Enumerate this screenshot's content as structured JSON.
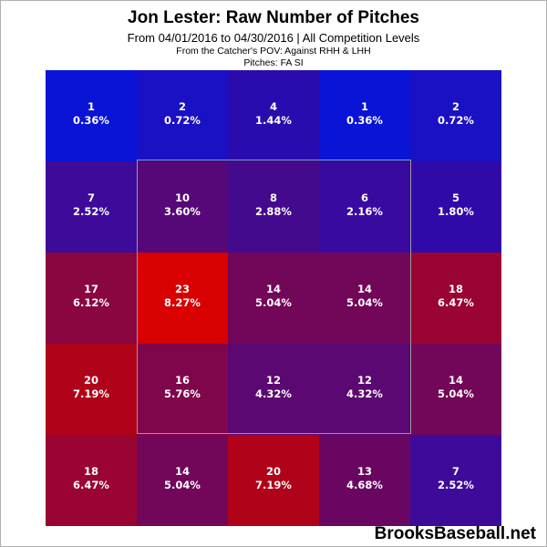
{
  "header": {
    "title": "Jon Lester: Raw Number of Pitches",
    "subtitle": "From 04/01/2016 to 04/30/2016 | All Competition Levels",
    "pov": "From the Catcher's POV:  Against RHH & LHH",
    "pitches": "Pitches:  FA  SI"
  },
  "brand": "BrooksBaseball.net",
  "chart_data": {
    "type": "heatmap",
    "rows": 5,
    "cols": 5,
    "strike_zone": {
      "rows": [
        1,
        3
      ],
      "cols": [
        1,
        3
      ]
    },
    "cells": [
      [
        {
          "count": "1",
          "pct": "0.36%",
          "color": "#0a14d6"
        },
        {
          "count": "2",
          "pct": "0.72%",
          "color": "#1a10c4"
        },
        {
          "count": "4",
          "pct": "1.44%",
          "color": "#2a0cae"
        },
        {
          "count": "1",
          "pct": "0.36%",
          "color": "#0a14d6"
        },
        {
          "count": "2",
          "pct": "0.72%",
          "color": "#1a10c4"
        }
      ],
      [
        {
          "count": "7",
          "pct": "2.52%",
          "color": "#3e0a9a"
        },
        {
          "count": "10",
          "pct": "3.60%",
          "color": "#570878"
        },
        {
          "count": "8",
          "pct": "2.88%",
          "color": "#440a8e"
        },
        {
          "count": "6",
          "pct": "2.16%",
          "color": "#380aa0"
        },
        {
          "count": "5",
          "pct": "1.80%",
          "color": "#300aa8"
        }
      ],
      [
        {
          "count": "17",
          "pct": "6.12%",
          "color": "#8a0640"
        },
        {
          "count": "23",
          "pct": "8.27%",
          "color": "#d80000"
        },
        {
          "count": "14",
          "pct": "5.04%",
          "color": "#720658"
        },
        {
          "count": "14",
          "pct": "5.04%",
          "color": "#720658"
        },
        {
          "count": "18",
          "pct": "6.47%",
          "color": "#9a0432"
        }
      ],
      [
        {
          "count": "20",
          "pct": "7.19%",
          "color": "#b00218"
        },
        {
          "count": "16",
          "pct": "5.76%",
          "color": "#80064c"
        },
        {
          "count": "12",
          "pct": "4.32%",
          "color": "#5c0872"
        },
        {
          "count": "12",
          "pct": "4.32%",
          "color": "#5c0872"
        },
        {
          "count": "14",
          "pct": "5.04%",
          "color": "#720658"
        }
      ],
      [
        {
          "count": "18",
          "pct": "6.47%",
          "color": "#9a0432"
        },
        {
          "count": "14",
          "pct": "5.04%",
          "color": "#720658"
        },
        {
          "count": "20",
          "pct": "7.19%",
          "color": "#b00218"
        },
        {
          "count": "13",
          "pct": "4.68%",
          "color": "#680662"
        },
        {
          "count": "7",
          "pct": "2.52%",
          "color": "#3e0a9a"
        }
      ]
    ]
  }
}
